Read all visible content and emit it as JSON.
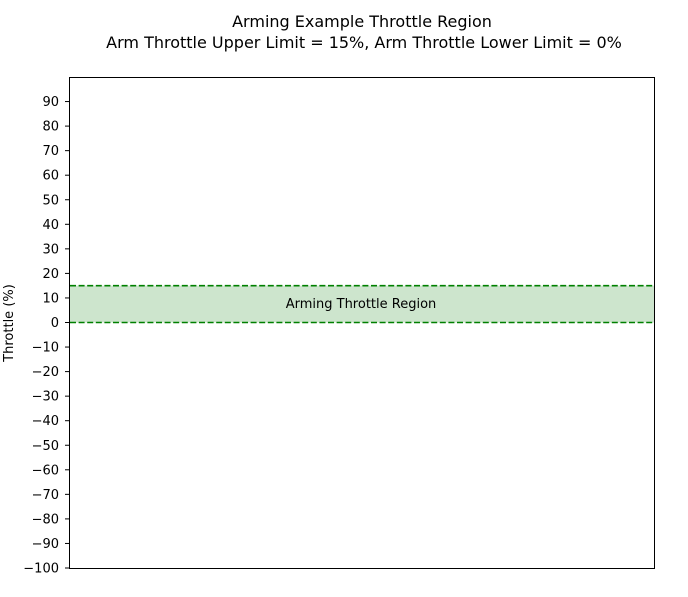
{
  "chart_data": {
    "type": "line",
    "title": "Arming Example Throttle Region",
    "subtitle": "Arm Throttle Upper Limit = 15%, Arm Throttle Lower Limit = 0%",
    "xlabel": "",
    "ylabel": "Throttle (%)",
    "ylim": [
      -100,
      100
    ],
    "yticks": [
      -100,
      -90,
      -80,
      -70,
      -60,
      -50,
      -40,
      -30,
      -20,
      -10,
      0,
      10,
      20,
      30,
      40,
      50,
      60,
      70,
      80,
      90
    ],
    "xticks_visible": false,
    "grid": false,
    "region": {
      "label": "Arming Throttle Region",
      "lower": 0,
      "upper": 15,
      "fill_color": "#cde5cd"
    },
    "limit_lines": [
      {
        "value": 15,
        "color": "#008000",
        "style": "dashed"
      },
      {
        "value": 0,
        "color": "#008000",
        "style": "dashed"
      }
    ]
  }
}
